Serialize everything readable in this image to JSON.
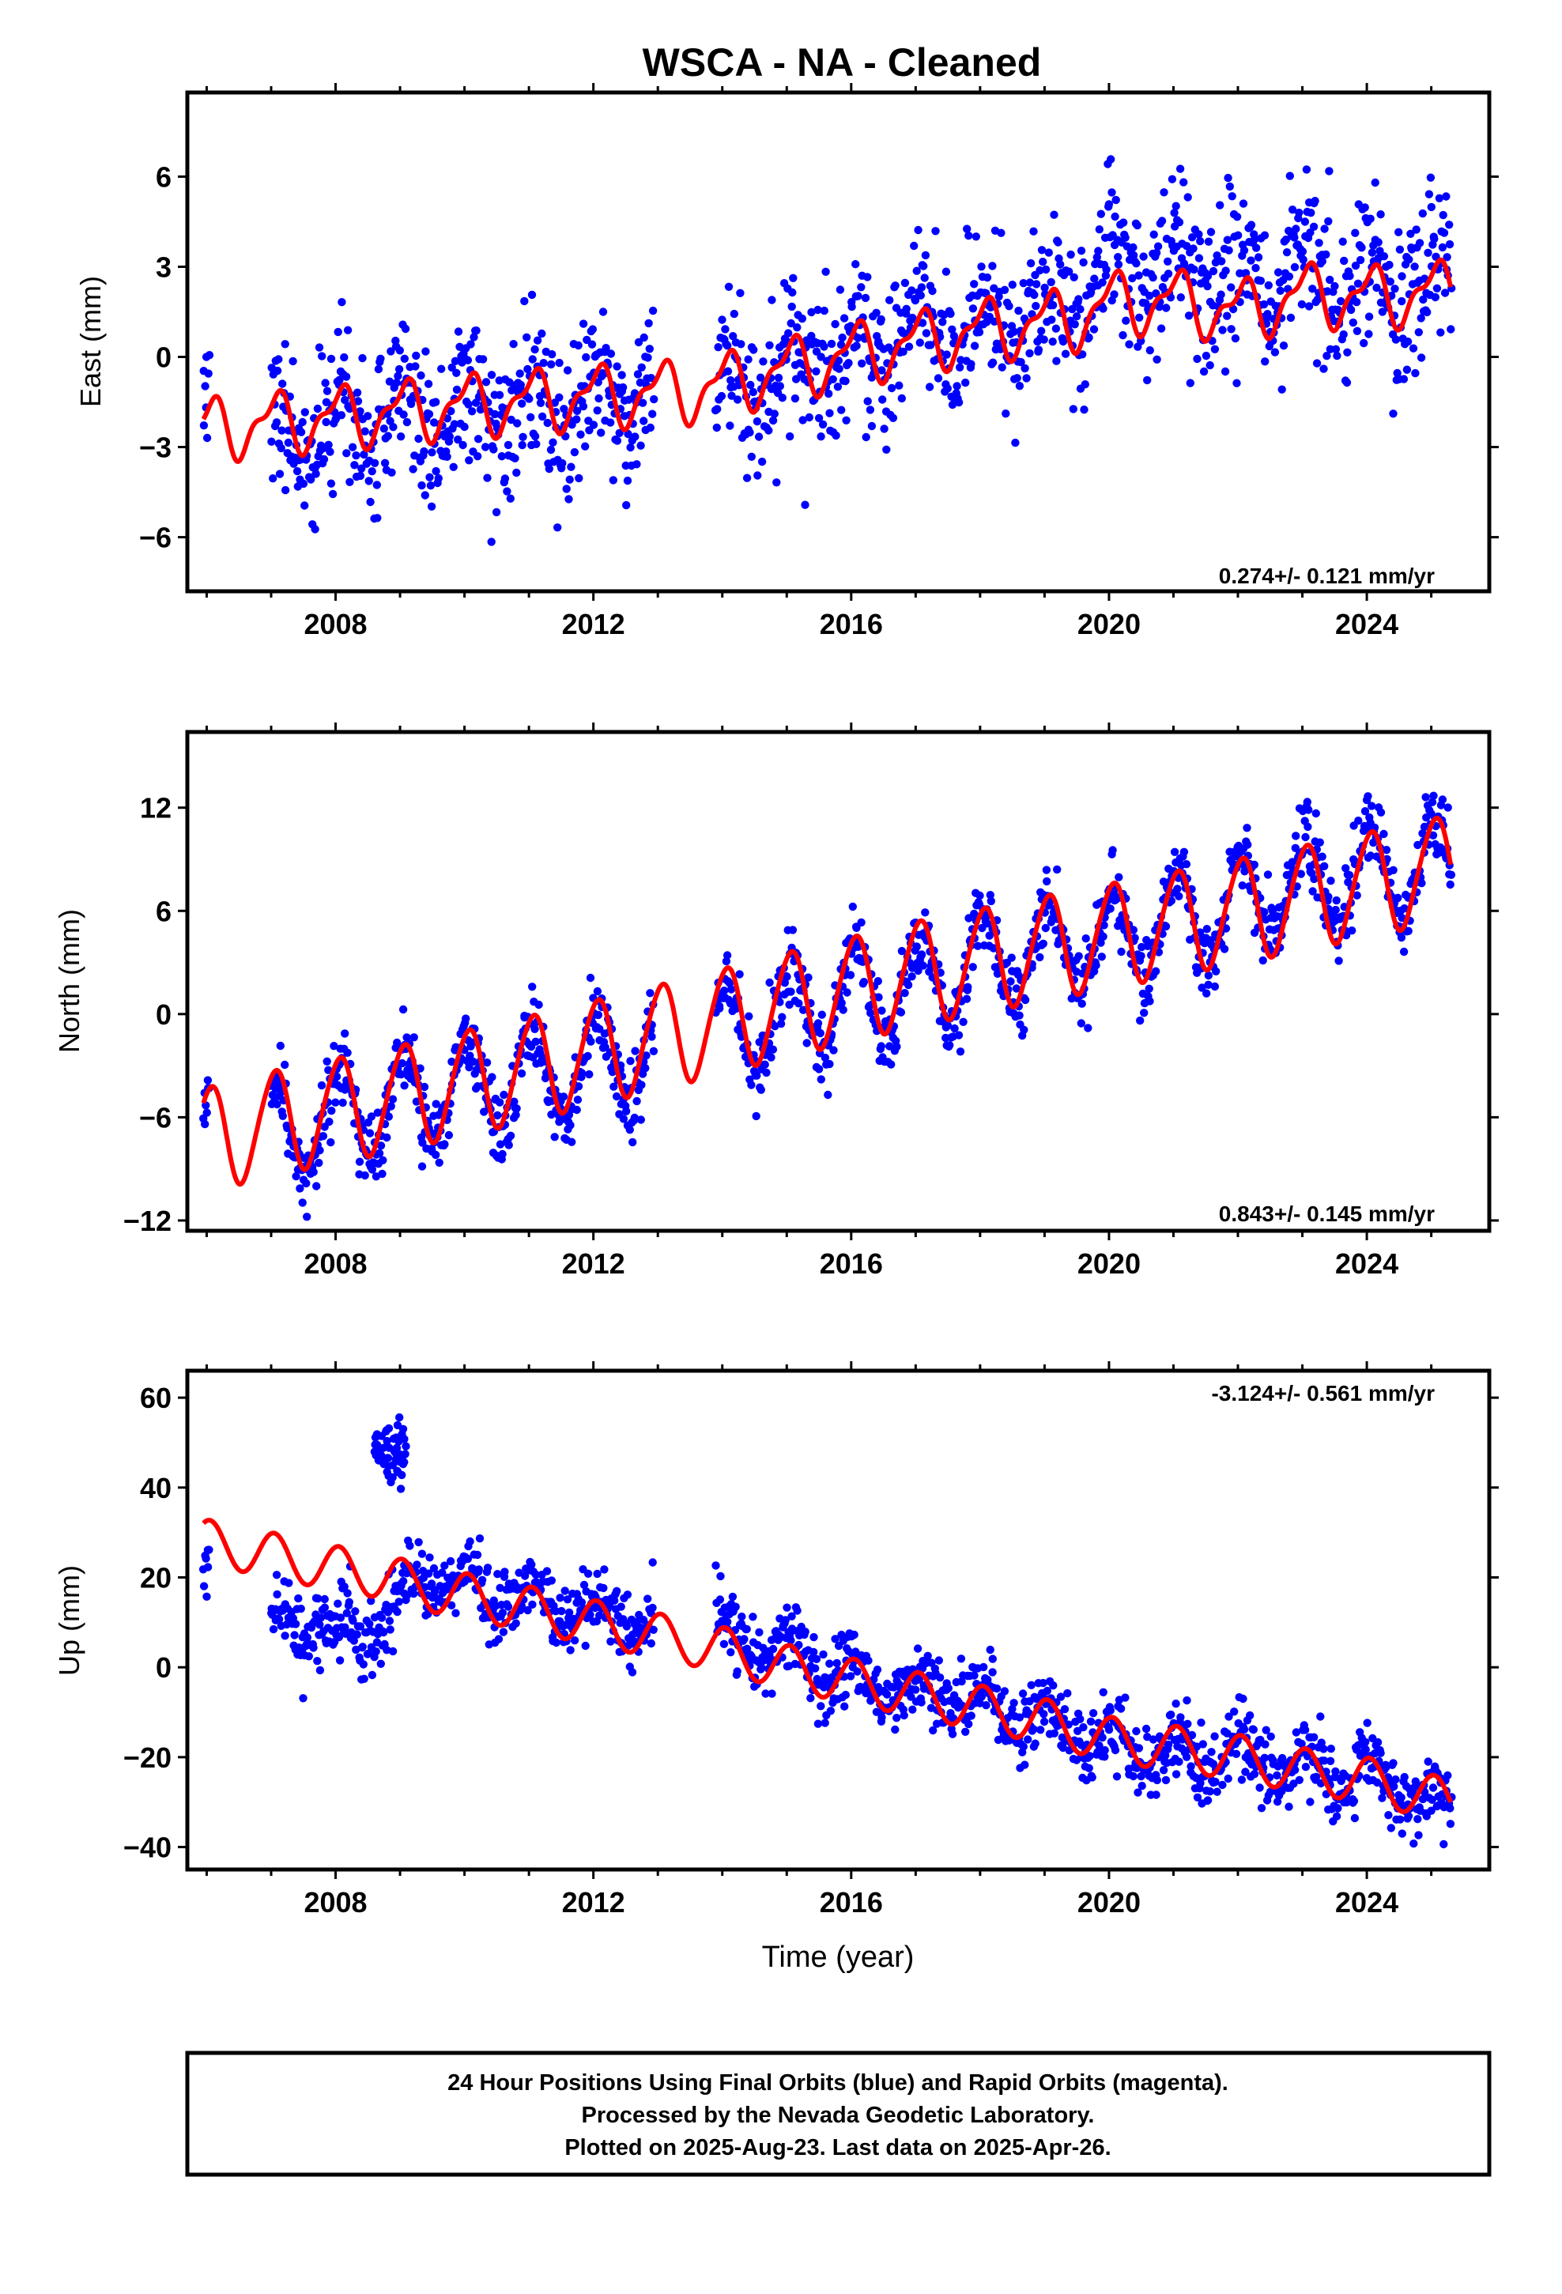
{
  "title": "WSCA  - NA - Cleaned",
  "colors": {
    "final_orbits": "#0000ff",
    "model_fit": "#ff0000",
    "frame": "#000000"
  },
  "chart_data": [
    {
      "type": "scatter",
      "component": "east",
      "ylabel": "East (mm)",
      "xlim": [
        2005.7,
        2025.9
      ],
      "ylim": [
        -7.8,
        8.8
      ],
      "x_ticks": [
        2008,
        2012,
        2016,
        2020,
        2024
      ],
      "y_ticks": [
        -6,
        -3,
        0,
        3,
        6
      ],
      "rate_label": "0.274+/- 0.121 mm/yr",
      "rate_position": "bottom-right",
      "series": [
        {
          "kind": "points",
          "color": "#0000ff",
          "segments": [
            [
              2005.95,
              2006.05
            ],
            [
              2007.0,
              2012.95
            ],
            [
              2013.9,
              2025.32
            ]
          ],
          "trend_knots": [
            [
              2006.0,
              -2.0
            ],
            [
              2007.0,
              -2.6
            ],
            [
              2008.0,
              -2.3
            ],
            [
              2010.0,
              -1.8
            ],
            [
              2012.0,
              -1.6
            ],
            [
              2013.9,
              -1.2
            ],
            [
              2016.0,
              0.2
            ],
            [
              2018.0,
              1.2
            ],
            [
              2019.5,
              1.8
            ],
            [
              2020.0,
              2.6
            ],
            [
              2021.0,
              3.0
            ],
            [
              2022.0,
              2.6
            ],
            [
              2023.0,
              2.8
            ],
            [
              2024.0,
              2.2
            ],
            [
              2025.3,
              2.6
            ]
          ],
          "annual_amplitude": 1.0,
          "noise_sd": 1.3
        },
        {
          "kind": "model",
          "color": "#ff0000",
          "trend_knots": [
            [
              2005.95,
              -2.4
            ],
            [
              2008.0,
              -2.0
            ],
            [
              2010.0,
              -1.6
            ],
            [
              2012.0,
              -1.3
            ],
            [
              2013.6,
              -1.1
            ],
            [
              2016.0,
              0.1
            ],
            [
              2018.0,
              0.9
            ],
            [
              2019.5,
              1.3
            ],
            [
              2020.0,
              1.8
            ],
            [
              2021.0,
              1.9
            ],
            [
              2022.0,
              1.5
            ],
            [
              2023.0,
              2.1
            ],
            [
              2024.0,
              2.0
            ],
            [
              2025.3,
              2.2
            ]
          ],
          "annual_amplitude": 0.9,
          "semiannual_amplitude": 0.4
        }
      ]
    },
    {
      "type": "scatter",
      "component": "north",
      "ylabel": "North (mm)",
      "xlim": [
        2005.7,
        2025.9
      ],
      "ylim": [
        -12.6,
        16.4
      ],
      "x_ticks": [
        2008,
        2012,
        2016,
        2020,
        2024
      ],
      "y_ticks": [
        -12,
        -6,
        0,
        6,
        12
      ],
      "rate_label": "0.843+/- 0.145 mm/yr",
      "rate_position": "bottom-right",
      "series": [
        {
          "kind": "points",
          "color": "#0000ff",
          "segments": [
            [
              2005.95,
              2006.05
            ],
            [
              2007.0,
              2012.95
            ],
            [
              2013.9,
              2025.32
            ]
          ],
          "trend_knots": [
            [
              2006.0,
              -8.0
            ],
            [
              2007.0,
              -7.0
            ],
            [
              2009.0,
              -5.2
            ],
            [
              2011.0,
              -3.6
            ],
            [
              2013.0,
              -2.0
            ],
            [
              2015.0,
              0.0
            ],
            [
              2017.0,
              1.8
            ],
            [
              2019.0,
              3.6
            ],
            [
              2021.0,
              5.4
            ],
            [
              2023.0,
              7.6
            ],
            [
              2025.3,
              8.8
            ]
          ],
          "annual_amplitude": 2.8,
          "noise_sd": 1.1
        },
        {
          "kind": "model",
          "color": "#ff0000",
          "trend_knots": [
            [
              2005.95,
              -7.3
            ],
            [
              2007.0,
              -6.3
            ],
            [
              2009.0,
              -4.8
            ],
            [
              2011.0,
              -3.1
            ],
            [
              2013.0,
              -1.3
            ],
            [
              2015.0,
              0.6
            ],
            [
              2017.0,
              2.4
            ],
            [
              2019.0,
              3.9
            ],
            [
              2021.0,
              5.3
            ],
            [
              2023.0,
              6.8
            ],
            [
              2025.3,
              8.6
            ]
          ],
          "annual_amplitude": 3.0,
          "semiannual_amplitude": 0.3
        }
      ]
    },
    {
      "type": "scatter",
      "component": "up",
      "ylabel": "Up (mm)",
      "xlabel": "Time (year)",
      "xlim": [
        2005.7,
        2025.9
      ],
      "ylim": [
        -45,
        66
      ],
      "x_ticks": [
        2008,
        2012,
        2016,
        2020,
        2024
      ],
      "y_ticks": [
        -40,
        -20,
        0,
        20,
        40,
        60
      ],
      "rate_label": "-3.124+/- 0.561 mm/yr",
      "rate_position": "top-right",
      "series": [
        {
          "kind": "points",
          "color": "#0000ff",
          "segments": [
            [
              2005.95,
              2006.05
            ],
            [
              2007.0,
              2012.95
            ],
            [
              2013.9,
              2025.32
            ]
          ],
          "trend_knots": [
            [
              2006.0,
              20.0
            ],
            [
              2007.0,
              10.0
            ],
            [
              2008.0,
              8.0
            ],
            [
              2008.85,
              10.0
            ],
            [
              2009.2,
              20.0
            ],
            [
              2010.0,
              18.0
            ],
            [
              2012.0,
              12.0
            ],
            [
              2013.0,
              9.0
            ],
            [
              2014.0,
              8.0
            ],
            [
              2016.0,
              -2.0
            ],
            [
              2018.0,
              -8.0
            ],
            [
              2019.5,
              -14.0
            ],
            [
              2020.0,
              -18.0
            ],
            [
              2022.0,
              -20.0
            ],
            [
              2024.0,
              -24.0
            ],
            [
              2025.3,
              -30.0
            ]
          ],
          "annual_amplitude": 4.0,
          "noise_sd": 4.0
        },
        {
          "kind": "outlier_cluster",
          "color": "#0000ff",
          "x_range": [
            2008.6,
            2009.1
          ],
          "y_center": 48,
          "y_spread": 6
        },
        {
          "kind": "model",
          "color": "#ff0000",
          "trend_knots": [
            [
              2005.95,
              28.0
            ],
            [
              2007.0,
              25.0
            ],
            [
              2008.0,
              22.0
            ],
            [
              2008.9,
              20.0
            ],
            [
              2009.2,
              18.0
            ],
            [
              2010.0,
              16.0
            ],
            [
              2011.0,
              13.0
            ],
            [
              2012.0,
              10.0
            ],
            [
              2013.0,
              7.0
            ],
            [
              2014.0,
              4.0
            ],
            [
              2015.0,
              0.0
            ],
            [
              2016.0,
              -3.0
            ],
            [
              2017.0,
              -6.0
            ],
            [
              2018.0,
              -9.0
            ],
            [
              2019.0,
              -12.0
            ],
            [
              2020.0,
              -16.0
            ],
            [
              2021.0,
              -18.0
            ],
            [
              2022.0,
              -20.0
            ],
            [
              2023.0,
              -23.0
            ],
            [
              2024.0,
              -25.0
            ],
            [
              2025.3,
              -30.0
            ]
          ],
          "annual_amplitude": 5.0,
          "semiannual_amplitude": 0.0
        }
      ]
    }
  ],
  "footer": {
    "line1": "24 Hour Positions Using Final Orbits (blue) and Rapid Orbits (magenta).",
    "line2": "Processed by the Nevada Geodetic Laboratory.",
    "line3": "Plotted on 2025-Aug-23. Last data on 2025-Apr-26."
  }
}
